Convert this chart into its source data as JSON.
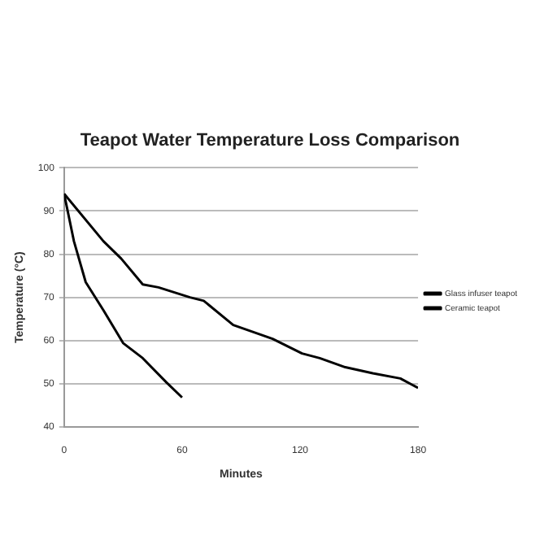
{
  "chart_data": {
    "type": "line",
    "title": "Teapot Water Temperature Loss Comparison",
    "xlabel": "Minutes",
    "ylabel": "Temperature (°C)",
    "xlim": [
      0,
      180
    ],
    "xticks": [
      0,
      60,
      120,
      180
    ],
    "ylim": [
      40,
      100
    ],
    "yticks": [
      40,
      50,
      60,
      70,
      80,
      90,
      100
    ],
    "grid": "y",
    "legend": "right",
    "marker": "none",
    "series": [
      {
        "name": "Glass infuser teapot",
        "color": "#000000",
        "x": [
          0,
          20,
          29,
          40,
          48,
          64,
          71,
          86,
          106,
          121,
          130,
          143,
          157,
          171,
          180
        ],
        "values": [
          94,
          83,
          79,
          73,
          72.3,
          70,
          69.2,
          63.6,
          60.4,
          57,
          55.9,
          53.8,
          52.4,
          51.2,
          49
        ]
      },
      {
        "name": "Ceramic teapot",
        "color": "#000000",
        "x": [
          0,
          5,
          11,
          20,
          30,
          40,
          52,
          60
        ],
        "values": [
          94,
          83,
          73.5,
          67,
          59.4,
          55.9,
          50.3,
          46.8
        ]
      }
    ]
  }
}
